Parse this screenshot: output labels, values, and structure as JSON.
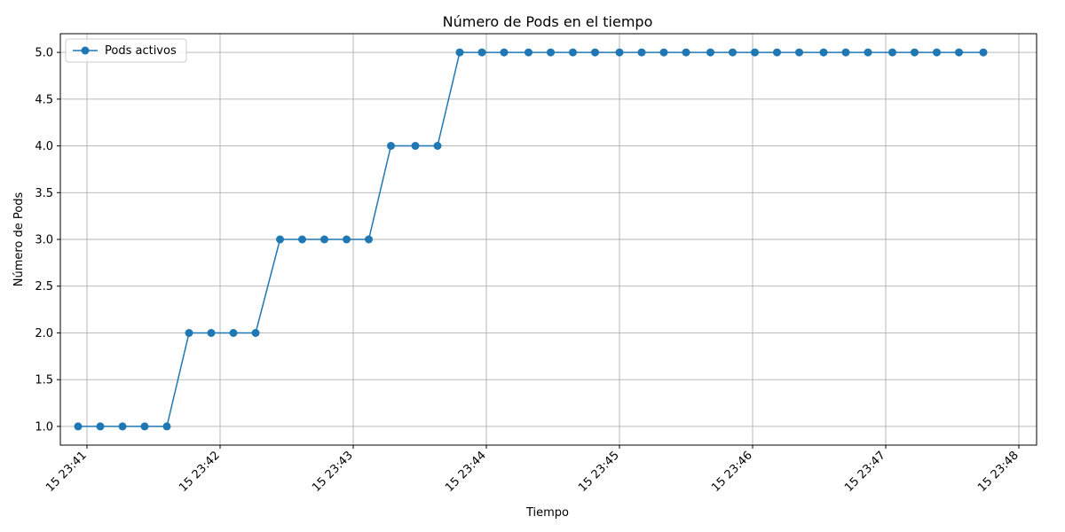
{
  "chart_data": {
    "type": "line",
    "title": "Número de Pods en el tiempo",
    "xlabel": "Tiempo",
    "ylabel": "Número de Pods",
    "x_ticks": [
      "15 23:41",
      "15 23:42",
      "15 23:43",
      "15 23:44",
      "15 23:45",
      "15 23:46",
      "15 23:47",
      "15 23:48"
    ],
    "y_ticks": [
      "1.0",
      "1.5",
      "2.0",
      "2.5",
      "3.0",
      "3.5",
      "4.0",
      "4.5",
      "5.0"
    ],
    "ylim": [
      0.8,
      5.2
    ],
    "xlim": [
      "23:40:48",
      "23:48:08"
    ],
    "grid": true,
    "legend_position": "top-left",
    "color": "#1f77b4",
    "series": [
      {
        "name": "Pods activos",
        "marker": "circle",
        "x": [
          "23:40:56",
          "23:41:06",
          "23:41:16",
          "23:41:26",
          "23:41:36",
          "23:41:46",
          "23:41:56",
          "23:42:06",
          "23:42:16",
          "23:42:27",
          "23:42:37",
          "23:42:47",
          "23:42:57",
          "23:43:07",
          "23:43:17",
          "23:43:28",
          "23:43:38",
          "23:43:48",
          "23:43:58",
          "23:44:08",
          "23:44:19",
          "23:44:29",
          "23:44:39",
          "23:44:49",
          "23:45:00",
          "23:45:10",
          "23:45:20",
          "23:45:30",
          "23:45:41",
          "23:45:51",
          "23:46:01",
          "23:46:11",
          "23:46:21",
          "23:46:32",
          "23:46:42",
          "23:46:52",
          "23:47:03",
          "23:47:13",
          "23:47:23",
          "23:47:33",
          "23:47:44"
        ],
        "values": [
          1,
          1,
          1,
          1,
          1,
          2,
          2,
          2,
          2,
          3,
          3,
          3,
          3,
          3,
          4,
          4,
          4,
          5,
          5,
          5,
          5,
          5,
          5,
          5,
          5,
          5,
          5,
          5,
          5,
          5,
          5,
          5,
          5,
          5,
          5,
          5,
          5,
          5,
          5,
          5,
          5
        ]
      }
    ]
  }
}
